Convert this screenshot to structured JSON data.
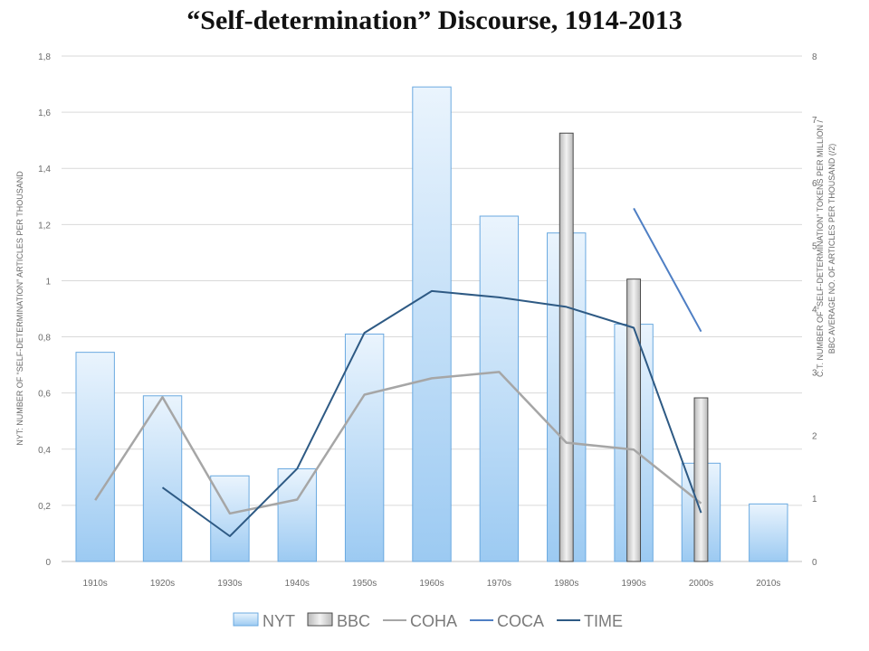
{
  "chart_data": {
    "type": "bar",
    "title": "“Self-determination” Discourse, 1914-2013",
    "categories": [
      "1910s",
      "1920s",
      "1930s",
      "1940s",
      "1950s",
      "1960s",
      "1970s",
      "1980s",
      "1990s",
      "2000s",
      "2010s"
    ],
    "ylabel_left": "NYT: NUMBER OF “SELF-DETERMINATION” ARTICLES PER THOUSAND",
    "ylabel_right_line1": "C.T. NUMBER OF “SELF-DETERMINATION” TOKENS PER MILLION /",
    "ylabel_right_line2": "BBC AVERAGE NO. OF ARTICLES PER THOUSAND (/2)",
    "left_axis": {
      "min": 0,
      "max": 1.8,
      "ticks": [
        "0",
        "0,2",
        "0,4",
        "0,6",
        "0,8",
        "1",
        "1,2",
        "1,4",
        "1,6",
        "1,8"
      ]
    },
    "right_axis": {
      "min": 0,
      "max": 8,
      "ticks": [
        "0",
        "1",
        "2",
        "3",
        "4",
        "5",
        "6",
        "7",
        "8"
      ]
    },
    "grid": true,
    "legend_position": "bottom",
    "series": [
      {
        "name": "NYT",
        "kind": "bar",
        "axis": "left",
        "color": "#8fc3ef",
        "values": [
          0.745,
          0.59,
          0.305,
          0.33,
          0.81,
          1.69,
          1.23,
          1.17,
          0.845,
          0.35,
          0.205
        ]
      },
      {
        "name": "BBC",
        "kind": "bar",
        "axis": "right",
        "color": "#c8c8c8",
        "values": [
          null,
          null,
          null,
          null,
          null,
          null,
          null,
          6.78,
          4.47,
          2.59,
          null
        ]
      },
      {
        "name": "COHA",
        "kind": "line",
        "axis": "right",
        "color": "#a6a6a6",
        "values": [
          0.97,
          2.6,
          0.76,
          0.98,
          2.64,
          2.9,
          3.0,
          1.88,
          1.77,
          0.92,
          null
        ]
      },
      {
        "name": "COCA",
        "kind": "line",
        "axis": "right",
        "color": "#4f7fc4",
        "values": [
          null,
          null,
          null,
          null,
          null,
          null,
          null,
          null,
          5.59,
          3.64,
          null
        ]
      },
      {
        "name": "TIME",
        "kind": "line",
        "axis": "right",
        "color": "#2e5a84",
        "values": [
          null,
          1.17,
          0.4,
          1.47,
          3.62,
          4.28,
          4.18,
          4.03,
          3.7,
          0.77,
          null
        ]
      }
    ]
  }
}
